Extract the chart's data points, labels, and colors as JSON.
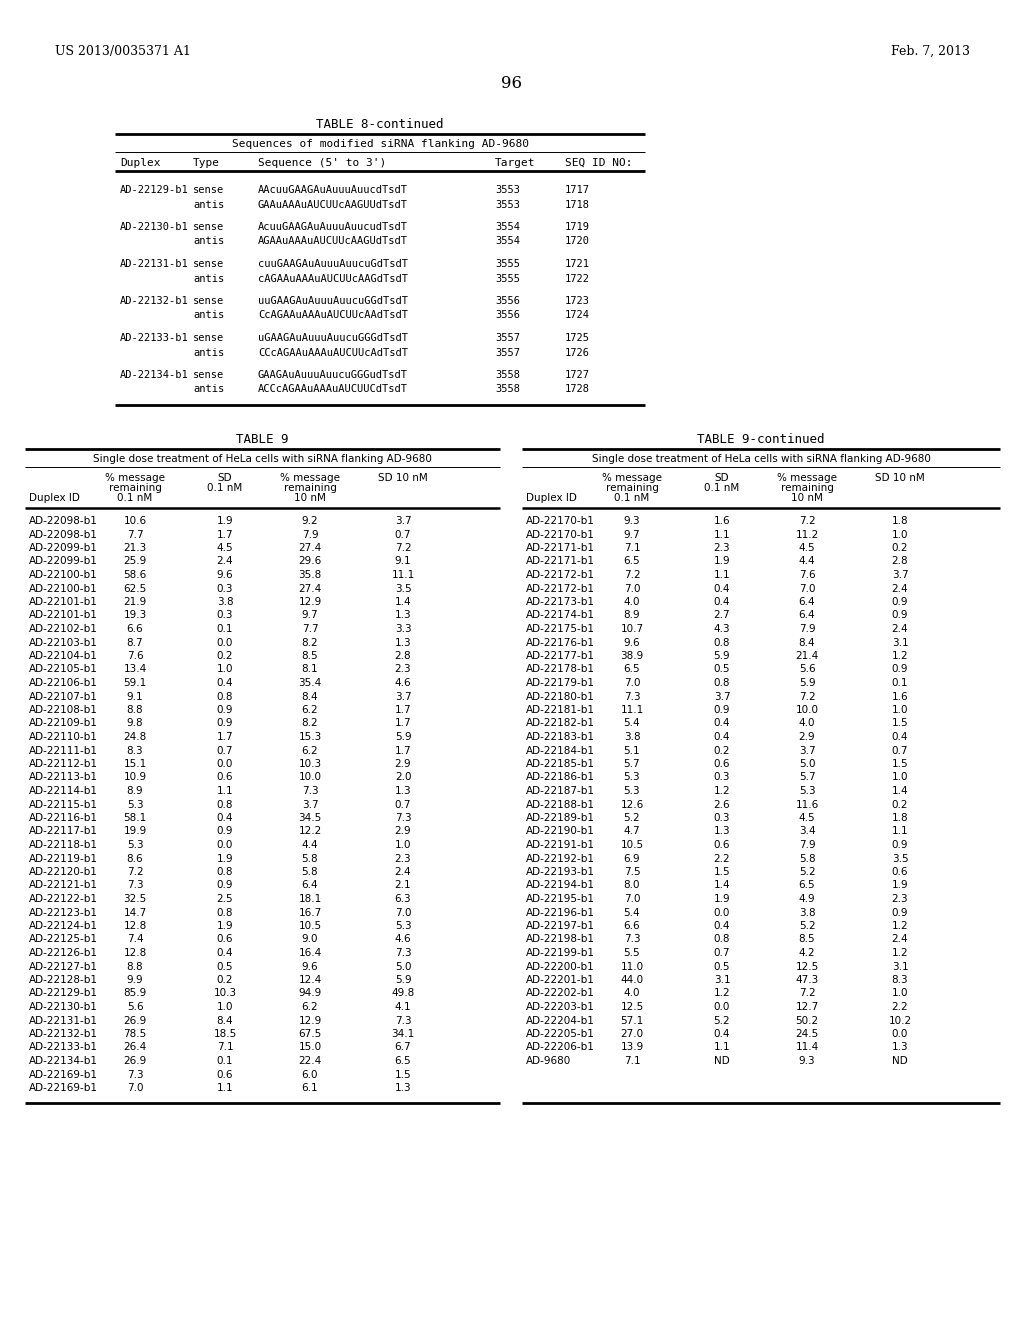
{
  "header_left": "US 2013/0035371 A1",
  "header_right": "Feb. 7, 2013",
  "page_number": "96",
  "table8_title": "TABLE 8-continued",
  "table8_subtitle": "Sequences of modified siRNA flanking AD-9680",
  "table8_col_headers": [
    "Duplex",
    "Type",
    "Sequence (5' to 3')",
    "Target",
    "SEQ ID NO:"
  ],
  "table8_data": [
    [
      "AD-22129-b1",
      "sense",
      "AAcuuGAAGAuAuuuAuucdTsdT",
      "3553",
      "1717"
    ],
    [
      "",
      "antis",
      "GAAuAAAuAUCUUcAAGUUdTsdT",
      "3553",
      "1718"
    ],
    [
      "AD-22130-b1",
      "sense",
      "AcuuGAAGAuAuuuAuucudTsdT",
      "3554",
      "1719"
    ],
    [
      "",
      "antis",
      "AGAAuAAAuAUCUUcAAGUdTsdT",
      "3554",
      "1720"
    ],
    [
      "AD-22131-b1",
      "sense",
      "cuuGAAGAuAuuuAuucuGdTsdT",
      "3555",
      "1721"
    ],
    [
      "",
      "antis",
      "cAGAAuAAAuAUCUUcAAGdTsdT",
      "3555",
      "1722"
    ],
    [
      "AD-22132-b1",
      "sense",
      "uuGAAGAuAuuuAuucuGGdTsdT",
      "3556",
      "1723"
    ],
    [
      "",
      "antis",
      "CcAGAAuAAAuAUCUUcAAdTsdT",
      "3556",
      "1724"
    ],
    [
      "AD-22133-b1",
      "sense",
      "uGAAGAuAuuuAuucuGGGdTsdT",
      "3557",
      "1725"
    ],
    [
      "",
      "antis",
      "CCcAGAAuAAAuAUCUUcAdTsdT",
      "3557",
      "1726"
    ],
    [
      "AD-22134-b1",
      "sense",
      "GAAGAuAuuuAuucuGGGudTsdT",
      "3558",
      "1727"
    ],
    [
      "",
      "antis",
      "ACCcAGAAuAAAuAUCUUCdTsdT",
      "3558",
      "1728"
    ]
  ],
  "table9_title": "TABLE 9",
  "table9cont_title": "TABLE 9-continued",
  "table9_subtitle": "Single dose treatment of HeLa cells with siRNA flanking AD-9680",
  "table9cont_subtitle": "Single dose treatment of HeLa cells with siRNA flanking AD-9680",
  "table9_col_headers": [
    "Duplex ID",
    "% message\nremaining\n0.1 nM",
    "SD\n0.1 nM",
    "% message\nremaining\n10 nM",
    "SD 10 nM"
  ],
  "table9_data": [
    [
      "AD-22098-b1",
      "10.6",
      "1.9",
      "9.2",
      "3.7"
    ],
    [
      "AD-22098-b1",
      "7.7",
      "1.7",
      "7.9",
      "0.7"
    ],
    [
      "AD-22099-b1",
      "21.3",
      "4.5",
      "27.4",
      "7.2"
    ],
    [
      "AD-22099-b1",
      "25.9",
      "2.4",
      "29.6",
      "9.1"
    ],
    [
      "AD-22100-b1",
      "58.6",
      "9.6",
      "35.8",
      "11.1"
    ],
    [
      "AD-22100-b1",
      "62.5",
      "0.3",
      "27.4",
      "3.5"
    ],
    [
      "AD-22101-b1",
      "21.9",
      "3.8",
      "12.9",
      "1.4"
    ],
    [
      "AD-22101-b1",
      "19.3",
      "0.3",
      "9.7",
      "1.3"
    ],
    [
      "AD-22102-b1",
      "6.6",
      "0.1",
      "7.7",
      "3.3"
    ],
    [
      "AD-22103-b1",
      "8.7",
      "0.0",
      "8.2",
      "1.3"
    ],
    [
      "AD-22104-b1",
      "7.6",
      "0.2",
      "8.5",
      "2.8"
    ],
    [
      "AD-22105-b1",
      "13.4",
      "1.0",
      "8.1",
      "2.3"
    ],
    [
      "AD-22106-b1",
      "59.1",
      "0.4",
      "35.4",
      "4.6"
    ],
    [
      "AD-22107-b1",
      "9.1",
      "0.8",
      "8.4",
      "3.7"
    ],
    [
      "AD-22108-b1",
      "8.8",
      "0.9",
      "6.2",
      "1.7"
    ],
    [
      "AD-22109-b1",
      "9.8",
      "0.9",
      "8.2",
      "1.7"
    ],
    [
      "AD-22110-b1",
      "24.8",
      "1.7",
      "15.3",
      "5.9"
    ],
    [
      "AD-22111-b1",
      "8.3",
      "0.7",
      "6.2",
      "1.7"
    ],
    [
      "AD-22112-b1",
      "15.1",
      "0.0",
      "10.3",
      "2.9"
    ],
    [
      "AD-22113-b1",
      "10.9",
      "0.6",
      "10.0",
      "2.0"
    ],
    [
      "AD-22114-b1",
      "8.9",
      "1.1",
      "7.3",
      "1.3"
    ],
    [
      "AD-22115-b1",
      "5.3",
      "0.8",
      "3.7",
      "0.7"
    ],
    [
      "AD-22116-b1",
      "58.1",
      "0.4",
      "34.5",
      "7.3"
    ],
    [
      "AD-22117-b1",
      "19.9",
      "0.9",
      "12.2",
      "2.9"
    ],
    [
      "AD-22118-b1",
      "5.3",
      "0.0",
      "4.4",
      "1.0"
    ],
    [
      "AD-22119-b1",
      "8.6",
      "1.9",
      "5.8",
      "2.3"
    ],
    [
      "AD-22120-b1",
      "7.2",
      "0.8",
      "5.8",
      "2.4"
    ],
    [
      "AD-22121-b1",
      "7.3",
      "0.9",
      "6.4",
      "2.1"
    ],
    [
      "AD-22122-b1",
      "32.5",
      "2.5",
      "18.1",
      "6.3"
    ],
    [
      "AD-22123-b1",
      "14.7",
      "0.8",
      "16.7",
      "7.0"
    ],
    [
      "AD-22124-b1",
      "12.8",
      "1.9",
      "10.5",
      "5.3"
    ],
    [
      "AD-22125-b1",
      "7.4",
      "0.6",
      "9.0",
      "4.6"
    ],
    [
      "AD-22126-b1",
      "12.8",
      "0.4",
      "16.4",
      "7.3"
    ],
    [
      "AD-22127-b1",
      "8.8",
      "0.5",
      "9.6",
      "5.0"
    ],
    [
      "AD-22128-b1",
      "9.9",
      "0.2",
      "12.4",
      "5.9"
    ],
    [
      "AD-22129-b1",
      "85.9",
      "10.3",
      "94.9",
      "49.8"
    ],
    [
      "AD-22130-b1",
      "5.6",
      "1.0",
      "6.2",
      "4.1"
    ],
    [
      "AD-22131-b1",
      "26.9",
      "8.4",
      "12.9",
      "7.3"
    ],
    [
      "AD-22132-b1",
      "78.5",
      "18.5",
      "67.5",
      "34.1"
    ],
    [
      "AD-22133-b1",
      "26.4",
      "7.1",
      "15.0",
      "6.7"
    ],
    [
      "AD-22134-b1",
      "26.9",
      "0.1",
      "22.4",
      "6.5"
    ],
    [
      "AD-22169-b1",
      "7.3",
      "0.6",
      "6.0",
      "1.5"
    ],
    [
      "AD-22169-b1",
      "7.0",
      "1.1",
      "6.1",
      "1.3"
    ]
  ],
  "table9cont_data": [
    [
      "AD-22170-b1",
      "9.3",
      "1.6",
      "7.2",
      "1.8"
    ],
    [
      "AD-22170-b1",
      "9.7",
      "1.1",
      "11.2",
      "1.0"
    ],
    [
      "AD-22171-b1",
      "7.1",
      "2.3",
      "4.5",
      "0.2"
    ],
    [
      "AD-22171-b1",
      "6.5",
      "1.9",
      "4.4",
      "2.8"
    ],
    [
      "AD-22172-b1",
      "7.2",
      "1.1",
      "7.6",
      "3.7"
    ],
    [
      "AD-22172-b1",
      "7.0",
      "0.4",
      "7.0",
      "2.4"
    ],
    [
      "AD-22173-b1",
      "4.0",
      "0.4",
      "6.4",
      "0.9"
    ],
    [
      "AD-22174-b1",
      "8.9",
      "2.7",
      "6.4",
      "0.9"
    ],
    [
      "AD-22175-b1",
      "10.7",
      "4.3",
      "7.9",
      "2.4"
    ],
    [
      "AD-22176-b1",
      "9.6",
      "0.8",
      "8.4",
      "3.1"
    ],
    [
      "AD-22177-b1",
      "38.9",
      "5.9",
      "21.4",
      "1.2"
    ],
    [
      "AD-22178-b1",
      "6.5",
      "0.5",
      "5.6",
      "0.9"
    ],
    [
      "AD-22179-b1",
      "7.0",
      "0.8",
      "5.9",
      "0.1"
    ],
    [
      "AD-22180-b1",
      "7.3",
      "3.7",
      "7.2",
      "1.6"
    ],
    [
      "AD-22181-b1",
      "11.1",
      "0.9",
      "10.0",
      "1.0"
    ],
    [
      "AD-22182-b1",
      "5.4",
      "0.4",
      "4.0",
      "1.5"
    ],
    [
      "AD-22183-b1",
      "3.8",
      "0.4",
      "2.9",
      "0.4"
    ],
    [
      "AD-22184-b1",
      "5.1",
      "0.2",
      "3.7",
      "0.7"
    ],
    [
      "AD-22185-b1",
      "5.7",
      "0.6",
      "5.0",
      "1.5"
    ],
    [
      "AD-22186-b1",
      "5.3",
      "0.3",
      "5.7",
      "1.0"
    ],
    [
      "AD-22187-b1",
      "5.3",
      "1.2",
      "5.3",
      "1.4"
    ],
    [
      "AD-22188-b1",
      "12.6",
      "2.6",
      "11.6",
      "0.2"
    ],
    [
      "AD-22189-b1",
      "5.2",
      "0.3",
      "4.5",
      "1.8"
    ],
    [
      "AD-22190-b1",
      "4.7",
      "1.3",
      "3.4",
      "1.1"
    ],
    [
      "AD-22191-b1",
      "10.5",
      "0.6",
      "7.9",
      "0.9"
    ],
    [
      "AD-22192-b1",
      "6.9",
      "2.2",
      "5.8",
      "3.5"
    ],
    [
      "AD-22193-b1",
      "7.5",
      "1.5",
      "5.2",
      "0.6"
    ],
    [
      "AD-22194-b1",
      "8.0",
      "1.4",
      "6.5",
      "1.9"
    ],
    [
      "AD-22195-b1",
      "7.0",
      "1.9",
      "4.9",
      "2.3"
    ],
    [
      "AD-22196-b1",
      "5.4",
      "0.0",
      "3.8",
      "0.9"
    ],
    [
      "AD-22197-b1",
      "6.6",
      "0.4",
      "5.2",
      "1.2"
    ],
    [
      "AD-22198-b1",
      "7.3",
      "0.8",
      "8.5",
      "2.4"
    ],
    [
      "AD-22199-b1",
      "5.5",
      "0.7",
      "4.2",
      "1.2"
    ],
    [
      "AD-22200-b1",
      "11.0",
      "0.5",
      "12.5",
      "3.1"
    ],
    [
      "AD-22201-b1",
      "44.0",
      "3.1",
      "47.3",
      "8.3"
    ],
    [
      "AD-22202-b1",
      "4.0",
      "1.2",
      "7.2",
      "1.0"
    ],
    [
      "AD-22203-b1",
      "12.5",
      "0.0",
      "12.7",
      "2.2"
    ],
    [
      "AD-22204-b1",
      "57.1",
      "5.2",
      "50.2",
      "10.2"
    ],
    [
      "AD-22205-b1",
      "27.0",
      "0.4",
      "24.5",
      "0.0"
    ],
    [
      "AD-22206-b1",
      "13.9",
      "1.1",
      "11.4",
      "1.3"
    ],
    [
      "AD-9680",
      "7.1",
      "ND",
      "9.3",
      "ND"
    ]
  ],
  "bg_color": "#ffffff",
  "text_color": "#000000"
}
